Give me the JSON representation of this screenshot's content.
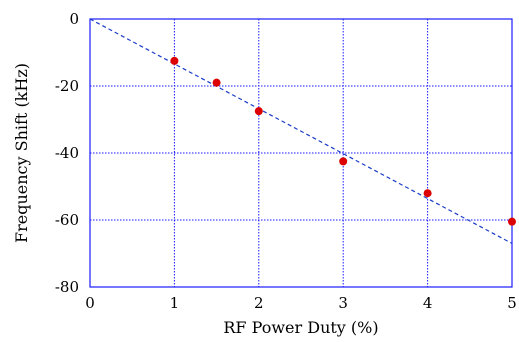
{
  "chart_data": {
    "type": "scatter",
    "xlabel": "RF Power Duty (%)",
    "ylabel": "Frequency Shift (kHz)",
    "xlim": [
      0,
      5
    ],
    "ylim": [
      -80,
      0
    ],
    "x_ticks": [
      0,
      1,
      2,
      3,
      4,
      5
    ],
    "y_ticks": [
      0,
      -20,
      -40,
      -60,
      -80
    ],
    "x_tick_labels": [
      "0",
      "1",
      "2",
      "3",
      "4",
      "5"
    ],
    "y_tick_labels": [
      "0",
      "-20",
      "-40",
      "-60",
      "-80"
    ],
    "grid": true,
    "series": [
      {
        "type": "scatter",
        "color": "#dd0000",
        "x": [
          1,
          1.5,
          2,
          3,
          4,
          5
        ],
        "y": [
          -12.5,
          -19,
          -27.5,
          -42.5,
          -52,
          -60.5
        ]
      },
      {
        "type": "line",
        "style": "dashed",
        "color": "#1a3cc8",
        "x": [
          0,
          5
        ],
        "y": [
          0,
          -67
        ]
      }
    ]
  }
}
